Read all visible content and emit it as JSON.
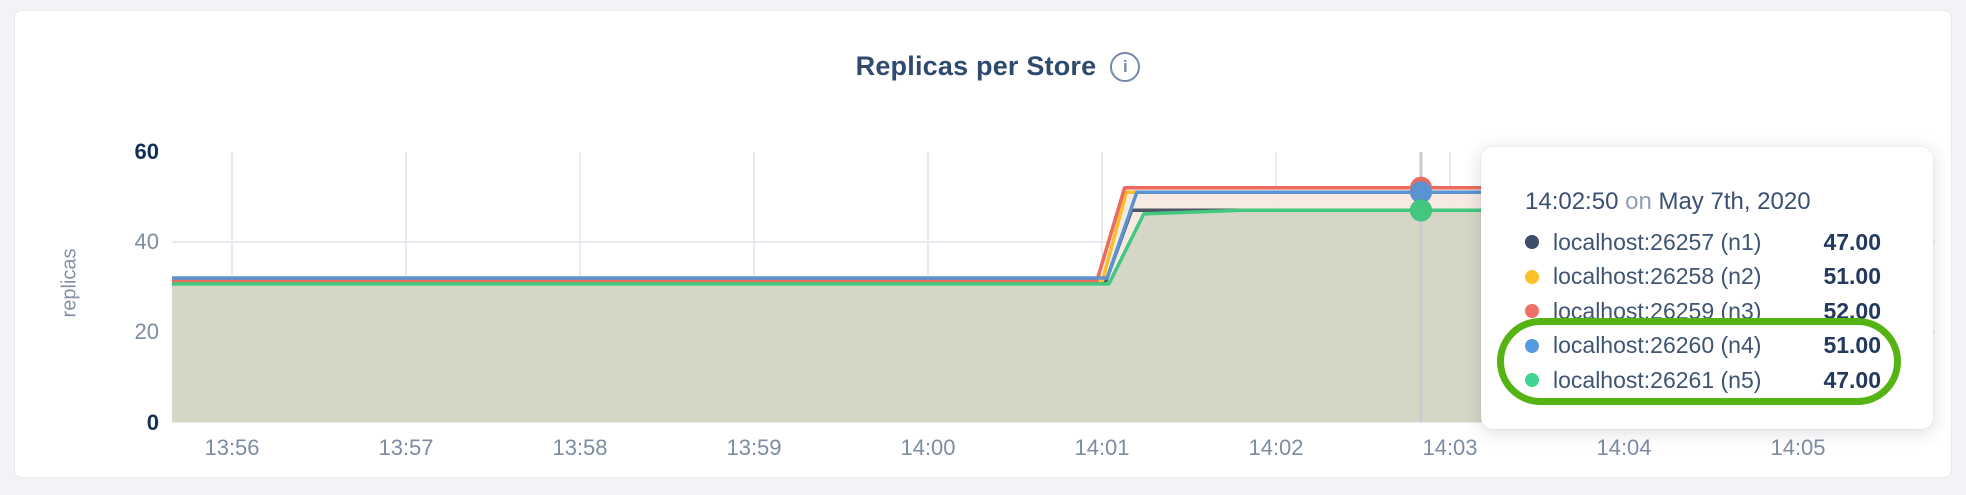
{
  "card": {
    "title": "Replicas per Store",
    "info_icon_glyph": "i"
  },
  "tooltip": {
    "time": "14:02:50",
    "conjunction": "on",
    "date": "May 7th, 2020",
    "rows": [
      {
        "name": "localhost:26257 (n1)",
        "value": "47.00",
        "color": "#3e4d69"
      },
      {
        "name": "localhost:26258 (n2)",
        "value": "51.00",
        "color": "#fdc028"
      },
      {
        "name": "localhost:26259 (n3)",
        "value": "52.00",
        "color": "#f06f68"
      },
      {
        "name": "localhost:26260 (n4)",
        "value": "51.00",
        "color": "#559ade"
      },
      {
        "name": "localhost:26261 (n5)",
        "value": "47.00",
        "color": "#41d392"
      }
    ]
  },
  "colors": {
    "annotation_ring": "#55b414",
    "gridline": "#e7eaf1",
    "hover_line": "#c7cbd2",
    "fill_under_green": "#d3d6c4",
    "fill_between": "#f6e9e2",
    "axis_text": "#7d8ca3",
    "axis_text_emphasis": "#122f55",
    "title_text": "#2e4a6e"
  },
  "chart_data": {
    "type": "area",
    "title": "Replicas per Store",
    "xlabel": "",
    "ylabel": "replicas",
    "ylim": [
      0,
      60
    ],
    "y_ticks": [
      0,
      20,
      40,
      60
    ],
    "y_ticks_emphasized": [
      0,
      60
    ],
    "x_ticks": [
      "13:56",
      "13:57",
      "13:58",
      "13:59",
      "14:00",
      "14:01",
      "14:02",
      "14:03",
      "14:04",
      "14:05"
    ],
    "grid": "on",
    "legend_position": "tooltip-overlay",
    "hover": {
      "label": "14:02:50 on May 7th, 2020",
      "t_minutes_after_1356": 6.8333
    },
    "series": [
      {
        "short": "n1",
        "name": "localhost:26257 (n1)",
        "color": "#4e5566",
        "value_at_hover": 47.0,
        "points": [
          [
            -0.345,
            31.0
          ],
          [
            5.02,
            31.0
          ],
          [
            5.17,
            47.0
          ],
          [
            7.5,
            47.0
          ]
        ]
      },
      {
        "short": "n2",
        "name": "localhost:26258 (n2)",
        "color": "#fcbf2a",
        "value_at_hover": 51.0,
        "points": [
          [
            -0.345,
            31.1
          ],
          [
            5.0,
            31.1
          ],
          [
            5.14,
            51.0
          ],
          [
            7.5,
            51.0
          ]
        ]
      },
      {
        "short": "n3",
        "name": "localhost:26259 (n3)",
        "color": "#ed6a5e",
        "value_at_hover": 52.0,
        "points": [
          [
            -0.345,
            31.3
          ],
          [
            4.97,
            31.3
          ],
          [
            5.13,
            52.0
          ],
          [
            7.5,
            52.0
          ]
        ]
      },
      {
        "short": "n4",
        "name": "localhost:26260 (n4)",
        "color": "#5b93d0",
        "value_at_hover": 51.0,
        "points": [
          [
            -0.345,
            32.0
          ],
          [
            5.03,
            32.0
          ],
          [
            5.2,
            51.0
          ],
          [
            7.5,
            51.0
          ]
        ]
      },
      {
        "short": "n5",
        "name": "localhost:26261 (n5)",
        "color": "#41c87e",
        "value_at_hover": 47.0,
        "points": [
          [
            -0.345,
            30.7
          ],
          [
            5.04,
            30.7
          ],
          [
            5.24,
            46.2
          ],
          [
            5.8,
            47.0
          ],
          [
            7.5,
            47.0
          ]
        ]
      }
    ],
    "fills": [
      {
        "series": "n3",
        "color": "#f6e9e2",
        "opacity": 0.95
      },
      {
        "series": "n5",
        "color": "#d3d6c4",
        "opacity": 0.95
      }
    ],
    "line_draw_order": [
      "n1",
      "n2",
      "n3",
      "n4",
      "n5"
    ],
    "marker_draw_order": [
      "n2",
      "n3",
      "n4",
      "n1",
      "n5"
    ]
  }
}
